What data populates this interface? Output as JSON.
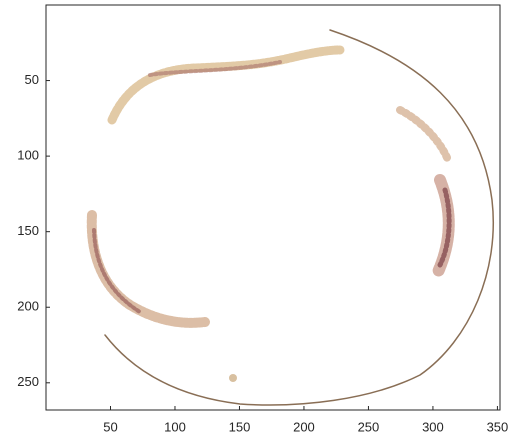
{
  "chart_data": {
    "type": "image",
    "xlim": [
      0,
      352
    ],
    "ylim": [
      0,
      268
    ],
    "y_inverted": true,
    "xticks": [
      50,
      100,
      150,
      200,
      250,
      300,
      350
    ],
    "yticks": [
      50,
      100,
      150,
      200,
      250
    ]
  }
}
